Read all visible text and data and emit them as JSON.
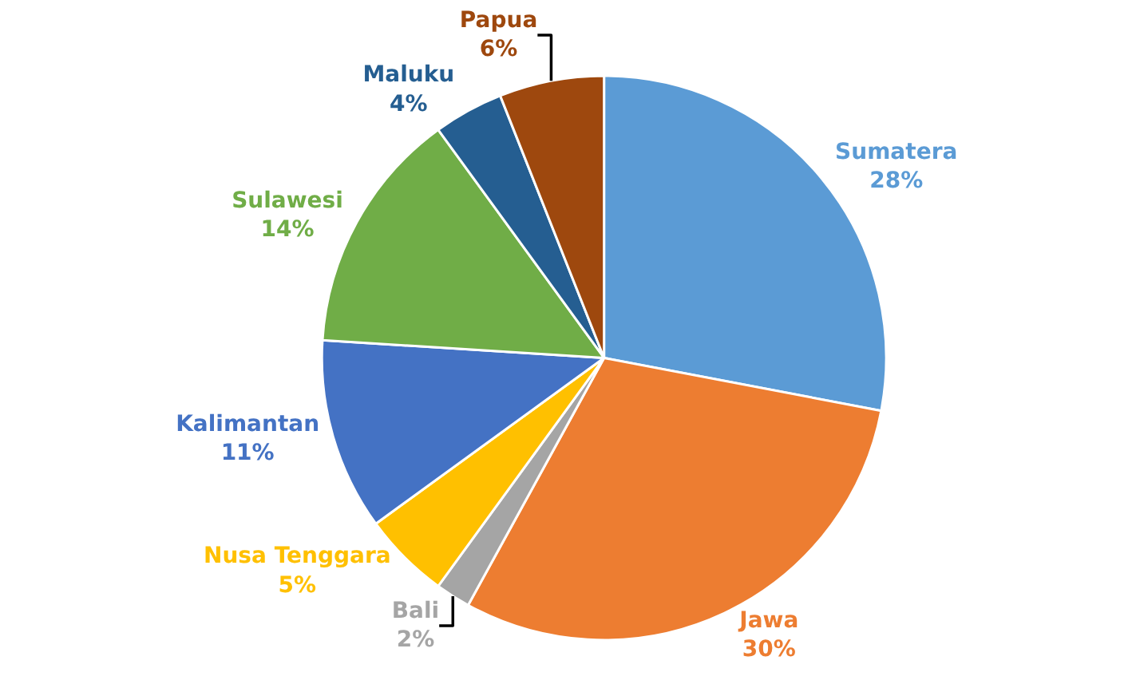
{
  "chart_data": {
    "type": "pie",
    "categories": [
      "Sumatera",
      "Jawa",
      "Bali",
      "Nusa Tenggara",
      "Kalimantan",
      "Sulawesi",
      "Maluku",
      "Papua"
    ],
    "values": [
      28,
      30,
      2,
      5,
      11,
      14,
      4,
      6
    ],
    "value_labels": [
      "28%",
      "30%",
      "2%",
      "5%",
      "11%",
      "14%",
      "4%",
      "6%"
    ],
    "colors": [
      "#5b9bd5",
      "#ed7d31",
      "#a5a5a5",
      "#ffc000",
      "#4472c4",
      "#70ad47",
      "#255e91",
      "#9e480e"
    ],
    "legend": false
  }
}
